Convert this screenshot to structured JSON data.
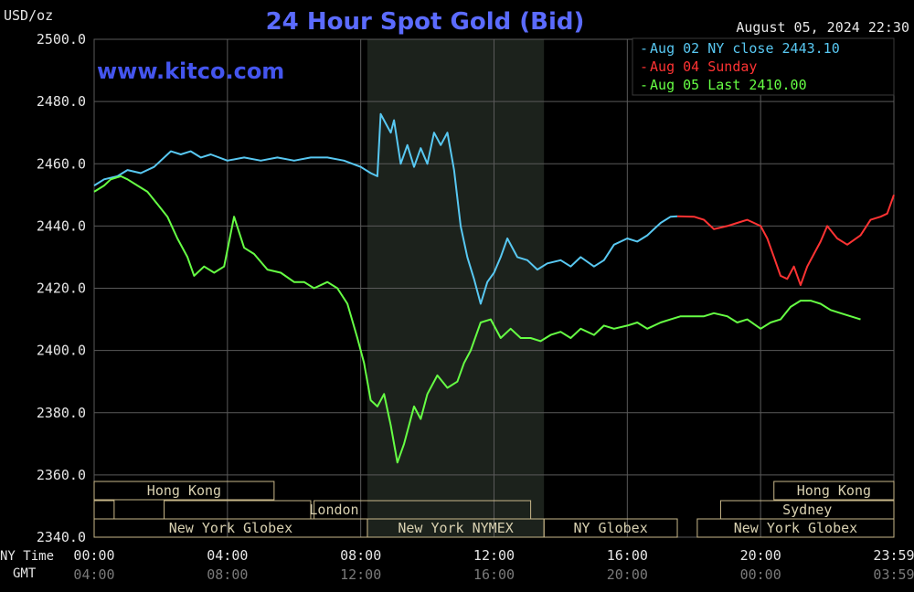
{
  "header": {
    "unit": "USD/oz",
    "title": "24 Hour Spot Gold (Bid)",
    "timestamp": "August 05, 2024 22:30",
    "watermark": "www.kitco.com"
  },
  "colors": {
    "background": "#000000",
    "title": "#5b6bff",
    "watermark": "#4455ee",
    "grid": "#5a5a5a",
    "axis_text": "#e6e6e6",
    "session_box": "#c9b88a",
    "session_text": "#d8d0b0",
    "highlight_band": "#1c221c",
    "legend_border": "#3a3a3a"
  },
  "legend": [
    {
      "label": "Aug 02 NY close 2443.10",
      "color": "#58c8f2"
    },
    {
      "label": "Aug 04 Sunday",
      "color": "#ff3333"
    },
    {
      "label": "Aug 05 Last 2410.00",
      "color": "#66ff44"
    }
  ],
  "axis_labels": {
    "ny_time": "NY Time",
    "gmt": "GMT"
  },
  "sessions": {
    "row1": [
      "Hong Kong",
      "Hong Kong"
    ],
    "row2": [
      "London",
      "Sydney"
    ],
    "row3": [
      "New York Globex",
      "New York NYMEX",
      "NY Globex",
      "New York Globex"
    ]
  },
  "chart_data": {
    "type": "line",
    "title": "24 Hour Spot Gold (Bid)",
    "ylabel": "USD/oz",
    "ylim": [
      2340,
      2500
    ],
    "xlim": [
      0,
      24
    ],
    "y_ticks": [
      "2500.0",
      "2480.0",
      "2460.0",
      "2440.0",
      "2420.0",
      "2400.0",
      "2380.0",
      "2360.0",
      "2340.0"
    ],
    "x_ticks_ny": [
      "00:00",
      "04:00",
      "08:00",
      "12:00",
      "16:00",
      "20:00",
      "23:59"
    ],
    "x_ticks_gmt": [
      "04:00",
      "08:00",
      "12:00",
      "16:00",
      "20:00",
      "00:00",
      "03:59"
    ],
    "highlight_range": [
      8.2,
      13.5
    ],
    "grid": true,
    "legend_position": "top-right",
    "series": [
      {
        "name": "Aug 02 NY close 2443.10",
        "color": "#58c8f2",
        "x": [
          0,
          0.3,
          0.7,
          1.0,
          1.4,
          1.8,
          2.0,
          2.3,
          2.6,
          2.9,
          3.2,
          3.5,
          4.0,
          4.5,
          5.0,
          5.5,
          6.0,
          6.5,
          7.0,
          7.5,
          8.0,
          8.3,
          8.5,
          8.6,
          8.8,
          8.9,
          9.0,
          9.2,
          9.4,
          9.6,
          9.8,
          10.0,
          10.2,
          10.4,
          10.6,
          10.8,
          11.0,
          11.2,
          11.4,
          11.6,
          11.8,
          12.0,
          12.2,
          12.4,
          12.7,
          13.0,
          13.3,
          13.6,
          14.0,
          14.3,
          14.6,
          15.0,
          15.3,
          15.6,
          16.0,
          16.3,
          16.6,
          17.0,
          17.3,
          17.5
        ],
        "values": [
          2453,
          2455,
          2456,
          2458,
          2457,
          2459,
          2461,
          2464,
          2463,
          2464,
          2462,
          2463,
          2461,
          2462,
          2461,
          2462,
          2461,
          2462,
          2462,
          2461,
          2459,
          2457,
          2456,
          2476,
          2472,
          2470,
          2474,
          2460,
          2466,
          2459,
          2465,
          2460,
          2470,
          2466,
          2470,
          2458,
          2440,
          2430,
          2423,
          2415,
          2422,
          2425,
          2430,
          2436,
          2430,
          2429,
          2426,
          2428,
          2429,
          2427,
          2430,
          2427,
          2429,
          2434,
          2436,
          2435,
          2437,
          2441,
          2443,
          2443.1
        ]
      },
      {
        "name": "Aug 04 Sunday",
        "color": "#ff3333",
        "x": [
          17.5,
          18.0,
          18.3,
          18.6,
          19.0,
          19.3,
          19.6,
          20.0,
          20.2,
          20.4,
          20.6,
          20.8,
          21.0,
          21.2,
          21.4,
          21.6,
          21.8,
          22.0,
          22.3,
          22.6,
          23.0,
          23.3,
          23.6,
          23.8,
          24.0
        ],
        "values": [
          2443.1,
          2443,
          2442,
          2439,
          2440,
          2441,
          2442,
          2440,
          2436,
          2430,
          2424,
          2423,
          2427,
          2421,
          2427,
          2431,
          2435,
          2440,
          2436,
          2434,
          2437,
          2442,
          2443,
          2444,
          2450
        ]
      },
      {
        "name": "Aug 05 Last 2410.00",
        "color": "#66ff44",
        "x": [
          0,
          0.3,
          0.5,
          0.8,
          1.0,
          1.3,
          1.6,
          1.9,
          2.2,
          2.5,
          2.8,
          3.0,
          3.3,
          3.6,
          3.9,
          4.2,
          4.5,
          4.8,
          5.2,
          5.6,
          6.0,
          6.3,
          6.6,
          7.0,
          7.3,
          7.6,
          7.9,
          8.1,
          8.3,
          8.5,
          8.7,
          8.9,
          9.1,
          9.3,
          9.6,
          9.8,
          10.0,
          10.3,
          10.6,
          10.9,
          11.1,
          11.3,
          11.6,
          11.9,
          12.2,
          12.5,
          12.8,
          13.1,
          13.4,
          13.7,
          14.0,
          14.3,
          14.6,
          15.0,
          15.3,
          15.6,
          16.0,
          16.3,
          16.6,
          17.0,
          17.3,
          17.6,
          18.0,
          18.3,
          18.6,
          19.0,
          19.3,
          19.6,
          20.0,
          20.3,
          20.6,
          20.9,
          21.2,
          21.5,
          21.8,
          22.1,
          22.4,
          22.7,
          23.0
        ],
        "values": [
          2451,
          2453,
          2455,
          2456,
          2455,
          2453,
          2451,
          2447,
          2443,
          2436,
          2430,
          2424,
          2427,
          2425,
          2427,
          2443,
          2433,
          2431,
          2426,
          2425,
          2422,
          2422,
          2420,
          2422,
          2420,
          2415,
          2404,
          2396,
          2384,
          2382,
          2386,
          2376,
          2364,
          2370,
          2382,
          2378,
          2386,
          2392,
          2388,
          2390,
          2396,
          2400,
          2409,
          2410,
          2404,
          2407,
          2404,
          2404,
          2403,
          2405,
          2406,
          2404,
          2407,
          2405,
          2408,
          2407,
          2408,
          2409,
          2407,
          2409,
          2410,
          2411,
          2411,
          2411,
          2412,
          2411,
          2409,
          2410,
          2407,
          2409,
          2410,
          2414,
          2416,
          2416,
          2415,
          2413,
          2412,
          2411,
          2410
        ]
      }
    ]
  }
}
